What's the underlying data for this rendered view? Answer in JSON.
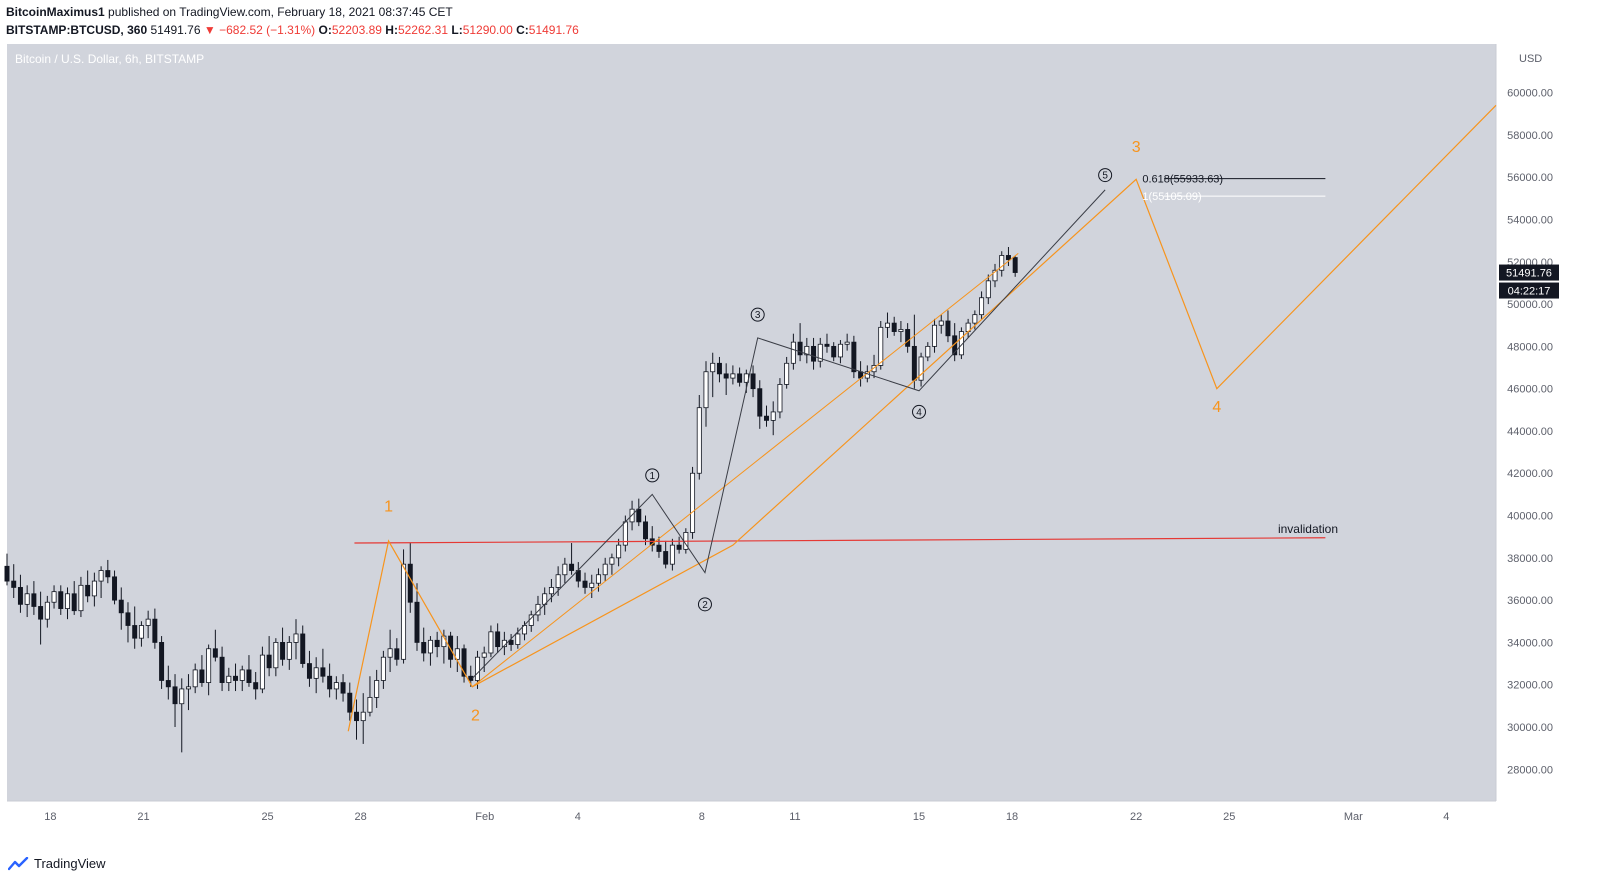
{
  "header": {
    "author": "BitcoinMaximus1",
    "published_text": "published on TradingView.com, February 18, 2021 08:37:45 CET",
    "symbol": "BITSTAMP:BTCUSD, 360",
    "last": "51491.76",
    "change_arrow": "▼",
    "change": "−682.52 (−1.31%)",
    "o_label": "O:",
    "o": "52203.89",
    "h_label": "H:",
    "h": "52262.31",
    "l_label": "L:",
    "l": "51290.00",
    "c_label": "C:",
    "c": "51491.76"
  },
  "footer": {
    "brand": "TradingView"
  },
  "colors": {
    "plot_bg": "#d1d4dc",
    "orange": "#f7941d",
    "red_line": "#e53935",
    "down_candle": "#131722",
    "up_candle": "#ffffff",
    "price_label_bg": "#131722"
  },
  "chart_data": {
    "type": "candlestick",
    "title": "Bitcoin / U.S. Dollar, 6h, BITSTAMP",
    "currency_label": "USD",
    "ylim": [
      26500,
      62300
    ],
    "y_ticks": [
      28000,
      30000,
      32000,
      34000,
      36000,
      38000,
      40000,
      42000,
      44000,
      46000,
      48000,
      50000,
      52000,
      54000,
      56000,
      58000,
      60000
    ],
    "x_ticks": [
      {
        "label": "18",
        "day": -14
      },
      {
        "label": "21",
        "day": -11
      },
      {
        "label": "25",
        "day": -7
      },
      {
        "label": "28",
        "day": -4
      },
      {
        "label": "Feb",
        "day": 0
      },
      {
        "label": "4",
        "day": 3
      },
      {
        "label": "8",
        "day": 7
      },
      {
        "label": "11",
        "day": 10
      },
      {
        "label": "15",
        "day": 14
      },
      {
        "label": "18",
        "day": 17
      },
      {
        "label": "22",
        "day": 21
      },
      {
        "label": "25",
        "day": 24
      },
      {
        "label": "Mar",
        "day": 28
      },
      {
        "label": "4",
        "day": 31
      }
    ],
    "xlim_days": [
      -15.4,
      32.6
    ],
    "candles_ohlc": [
      [
        37600,
        38200,
        36700,
        36900
      ],
      [
        36900,
        37700,
        36100,
        36600
      ],
      [
        36600,
        37200,
        35400,
        35800
      ],
      [
        35800,
        36700,
        35200,
        36300
      ],
      [
        36300,
        36900,
        35300,
        35700
      ],
      [
        35700,
        36400,
        33900,
        35100
      ],
      [
        35100,
        36200,
        34700,
        35900
      ],
      [
        35900,
        36700,
        35600,
        36400
      ],
      [
        36400,
        36700,
        35300,
        35600
      ],
      [
        35600,
        36600,
        35100,
        36300
      ],
      [
        36300,
        36900,
        35300,
        35500
      ],
      [
        35500,
        37100,
        35200,
        36700
      ],
      [
        36700,
        37400,
        35900,
        36200
      ],
      [
        36200,
        37300,
        35700,
        36900
      ],
      [
        36900,
        37600,
        36100,
        37400
      ],
      [
        37400,
        37900,
        36800,
        37100
      ],
      [
        37100,
        37400,
        35800,
        36000
      ],
      [
        36000,
        36600,
        34600,
        35400
      ],
      [
        35400,
        35900,
        34000,
        34800
      ],
      [
        34800,
        35700,
        33700,
        34200
      ],
      [
        34200,
        35000,
        33800,
        34800
      ],
      [
        34800,
        35500,
        34200,
        35100
      ],
      [
        35100,
        35600,
        33700,
        34000
      ],
      [
        34000,
        34300,
        31800,
        32200
      ],
      [
        32200,
        32900,
        31300,
        31900
      ],
      [
        31900,
        32500,
        30000,
        31100
      ],
      [
        31100,
        32300,
        28800,
        31800
      ],
      [
        31800,
        32500,
        30800,
        31900
      ],
      [
        31900,
        33000,
        31600,
        32700
      ],
      [
        32700,
        33400,
        31900,
        32100
      ],
      [
        32100,
        33900,
        31500,
        33700
      ],
      [
        33700,
        34600,
        33100,
        33300
      ],
      [
        33300,
        33800,
        31700,
        32100
      ],
      [
        32100,
        32800,
        31700,
        32400
      ],
      [
        32400,
        33000,
        31700,
        32200
      ],
      [
        32200,
        32900,
        31700,
        32700
      ],
      [
        32700,
        33400,
        31900,
        32100
      ],
      [
        32100,
        32600,
        31300,
        31800
      ],
      [
        31800,
        33800,
        31600,
        33400
      ],
      [
        33400,
        34300,
        32400,
        32800
      ],
      [
        32800,
        34200,
        32400,
        34000
      ],
      [
        34000,
        34700,
        32900,
        33200
      ],
      [
        33200,
        34300,
        32700,
        34000
      ],
      [
        34000,
        35100,
        33200,
        34400
      ],
      [
        34400,
        34800,
        32800,
        33000
      ],
      [
        33000,
        33600,
        31900,
        32300
      ],
      [
        32300,
        33300,
        31600,
        32800
      ],
      [
        32800,
        33700,
        32100,
        32400
      ],
      [
        32400,
        33000,
        31400,
        31800
      ],
      [
        31800,
        32400,
        31300,
        32100
      ],
      [
        32100,
        32500,
        31200,
        31600
      ],
      [
        31600,
        32100,
        30300,
        30700
      ],
      [
        30700,
        31300,
        29400,
        30300
      ],
      [
        30300,
        31600,
        29200,
        30700
      ],
      [
        30700,
        32400,
        30500,
        31400
      ],
      [
        31400,
        32700,
        30900,
        32200
      ],
      [
        32200,
        33600,
        31800,
        33300
      ],
      [
        33300,
        34600,
        32600,
        33700
      ],
      [
        33700,
        34200,
        32900,
        33200
      ],
      [
        33200,
        38400,
        33000,
        37700
      ],
      [
        37700,
        38700,
        35400,
        35900
      ],
      [
        35900,
        36800,
        33600,
        34000
      ],
      [
        34000,
        34700,
        33100,
        33500
      ],
      [
        33500,
        34300,
        32900,
        34100
      ],
      [
        34100,
        34500,
        33300,
        33800
      ],
      [
        33800,
        34600,
        33000,
        34300
      ],
      [
        34300,
        34500,
        32800,
        33200
      ],
      [
        33200,
        34300,
        32600,
        33700
      ],
      [
        33700,
        33900,
        32100,
        32400
      ],
      [
        32400,
        32900,
        31900,
        32200
      ],
      [
        32200,
        33600,
        31800,
        33300
      ],
      [
        33300,
        33800,
        32600,
        33500
      ],
      [
        33500,
        34800,
        33300,
        34500
      ],
      [
        34500,
        34900,
        33500,
        33800
      ],
      [
        33800,
        34500,
        33400,
        34100
      ],
      [
        34100,
        34400,
        33600,
        33900
      ],
      [
        33900,
        34700,
        33700,
        34400
      ],
      [
        34400,
        35000,
        34100,
        34800
      ],
      [
        34800,
        35500,
        34500,
        35300
      ],
      [
        35300,
        36200,
        35000,
        35800
      ],
      [
        35800,
        36600,
        35300,
        36300
      ],
      [
        36300,
        37000,
        35900,
        36600
      ],
      [
        36600,
        37600,
        36200,
        37200
      ],
      [
        37200,
        38000,
        36800,
        37700
      ],
      [
        37700,
        38700,
        37200,
        37400
      ],
      [
        37400,
        37800,
        36600,
        36900
      ],
      [
        36900,
        37300,
        36300,
        36600
      ],
      [
        36600,
        37200,
        36100,
        36800
      ],
      [
        36800,
        37500,
        36400,
        37200
      ],
      [
        37200,
        38000,
        36900,
        37700
      ],
      [
        37700,
        38200,
        37200,
        38000
      ],
      [
        38000,
        38900,
        37600,
        38600
      ],
      [
        38600,
        40000,
        38300,
        39700
      ],
      [
        39700,
        40700,
        39300,
        40300
      ],
      [
        40300,
        40800,
        39500,
        39700
      ],
      [
        39700,
        40000,
        38600,
        38900
      ],
      [
        38900,
        39500,
        38300,
        38600
      ],
      [
        38600,
        39000,
        38000,
        38300
      ],
      [
        38300,
        38800,
        37500,
        37700
      ],
      [
        37700,
        38900,
        37400,
        38600
      ],
      [
        38600,
        39000,
        38200,
        38400
      ],
      [
        38400,
        39400,
        38200,
        39200
      ],
      [
        39200,
        42300,
        38900,
        42000
      ],
      [
        42000,
        45700,
        41700,
        45100
      ],
      [
        45100,
        47300,
        44200,
        46800
      ],
      [
        46800,
        47700,
        45600,
        47200
      ],
      [
        47200,
        47500,
        46300,
        46700
      ],
      [
        46700,
        47200,
        45700,
        46500
      ],
      [
        46500,
        47100,
        46200,
        46700
      ],
      [
        46700,
        47000,
        46100,
        46300
      ],
      [
        46300,
        46900,
        45800,
        46700
      ],
      [
        46700,
        47100,
        45600,
        46000
      ],
      [
        46000,
        46400,
        44100,
        44700
      ],
      [
        44700,
        45200,
        44200,
        44500
      ],
      [
        44500,
        45400,
        43800,
        44900
      ],
      [
        44900,
        46500,
        44600,
        46200
      ],
      [
        46200,
        47500,
        46000,
        47200
      ],
      [
        47200,
        48600,
        46900,
        48200
      ],
      [
        48200,
        49100,
        47300,
        47600
      ],
      [
        47600,
        48400,
        47200,
        48000
      ],
      [
        48000,
        48400,
        46900,
        47300
      ],
      [
        47300,
        48400,
        47000,
        48100
      ],
      [
        48100,
        48600,
        47700,
        48000
      ],
      [
        48000,
        48200,
        47300,
        47500
      ],
      [
        47500,
        48300,
        47200,
        48100
      ],
      [
        48100,
        48600,
        47800,
        48200
      ],
      [
        48200,
        48500,
        46500,
        46800
      ],
      [
        46800,
        47300,
        46100,
        46500
      ],
      [
        46500,
        47100,
        46300,
        46800
      ],
      [
        46800,
        47600,
        46500,
        47100
      ],
      [
        47100,
        49200,
        46900,
        48900
      ],
      [
        48900,
        49600,
        48400,
        49100
      ],
      [
        49100,
        49400,
        48500,
        48700
      ],
      [
        48700,
        49200,
        48200,
        48800
      ],
      [
        48800,
        49100,
        47700,
        48000
      ],
      [
        48000,
        49500,
        46000,
        46400
      ],
      [
        46400,
        47700,
        46100,
        47500
      ],
      [
        47500,
        48200,
        47300,
        48000
      ],
      [
        48000,
        49300,
        47700,
        49000
      ],
      [
        49000,
        49500,
        48600,
        49200
      ],
      [
        49200,
        49700,
        48200,
        48500
      ],
      [
        48500,
        49100,
        47300,
        47600
      ],
      [
        47600,
        48900,
        47400,
        48700
      ],
      [
        48700,
        49300,
        48400,
        49100
      ],
      [
        49100,
        49700,
        48800,
        49500
      ],
      [
        49500,
        50600,
        49300,
        50300
      ],
      [
        50300,
        51400,
        50000,
        51100
      ],
      [
        51100,
        51900,
        50800,
        51600
      ],
      [
        51600,
        52500,
        51300,
        52300
      ],
      [
        52300,
        52700,
        51800,
        52100
      ],
      [
        52200,
        52262,
        51290,
        51492
      ]
    ],
    "annotations": {
      "orange_waves": [
        "1",
        "2",
        "3",
        "4"
      ],
      "black_subwaves": [
        "1",
        "2",
        "3",
        "4",
        "5"
      ],
      "fib_1": "0.618(55933.63)",
      "fib_1_price": 55933.63,
      "fib_2": "1(55105.09)",
      "fib_2_price": 55105.09,
      "invalidation_label": "invalidation",
      "invalidation_price": 38950
    },
    "last_price_label": "51491.76",
    "countdown_label": "04:22:17"
  }
}
